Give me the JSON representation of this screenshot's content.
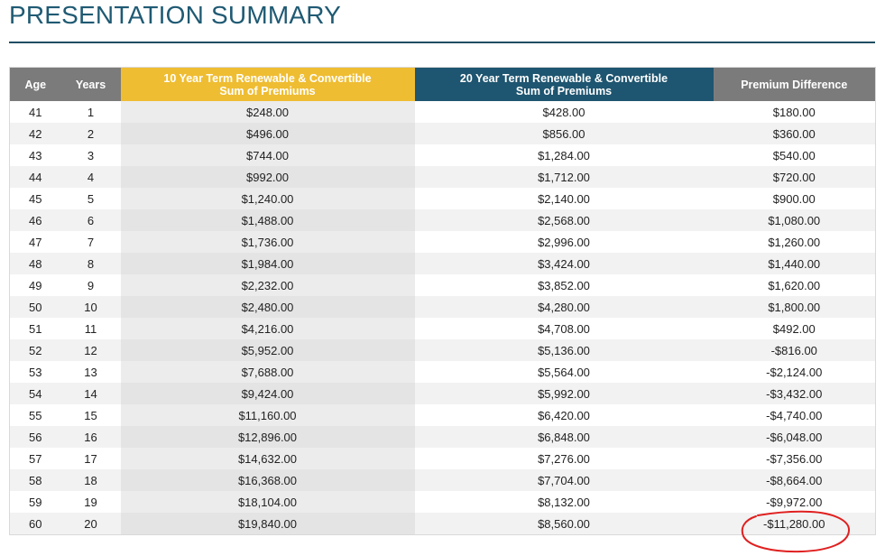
{
  "title": "PRESENTATION SUMMARY",
  "headers": {
    "age": "Age",
    "years": "Years",
    "ten_line1": "10 Year Term Renewable & Convertible",
    "ten_line2": "Sum of Premiums",
    "twenty_line1": "20 Year Term Renewable & Convertible",
    "twenty_line2": "Sum of Premiums",
    "diff": "Premium Difference"
  },
  "colors": {
    "title": "#1f5a73",
    "header_gray": "#7b7b7b",
    "header_gold": "#efbd32",
    "header_navy": "#1e5570",
    "annotation_red": "#e02020"
  },
  "rows": [
    {
      "age": "41",
      "years": "1",
      "ten": "$248.00",
      "twenty": "$428.00",
      "diff": "$180.00"
    },
    {
      "age": "42",
      "years": "2",
      "ten": "$496.00",
      "twenty": "$856.00",
      "diff": "$360.00"
    },
    {
      "age": "43",
      "years": "3",
      "ten": "$744.00",
      "twenty": "$1,284.00",
      "diff": "$540.00"
    },
    {
      "age": "44",
      "years": "4",
      "ten": "$992.00",
      "twenty": "$1,712.00",
      "diff": "$720.00"
    },
    {
      "age": "45",
      "years": "5",
      "ten": "$1,240.00",
      "twenty": "$2,140.00",
      "diff": "$900.00"
    },
    {
      "age": "46",
      "years": "6",
      "ten": "$1,488.00",
      "twenty": "$2,568.00",
      "diff": "$1,080.00"
    },
    {
      "age": "47",
      "years": "7",
      "ten": "$1,736.00",
      "twenty": "$2,996.00",
      "diff": "$1,260.00"
    },
    {
      "age": "48",
      "years": "8",
      "ten": "$1,984.00",
      "twenty": "$3,424.00",
      "diff": "$1,440.00"
    },
    {
      "age": "49",
      "years": "9",
      "ten": "$2,232.00",
      "twenty": "$3,852.00",
      "diff": "$1,620.00"
    },
    {
      "age": "50",
      "years": "10",
      "ten": "$2,480.00",
      "twenty": "$4,280.00",
      "diff": "$1,800.00"
    },
    {
      "age": "51",
      "years": "11",
      "ten": "$4,216.00",
      "twenty": "$4,708.00",
      "diff": "$492.00"
    },
    {
      "age": "52",
      "years": "12",
      "ten": "$5,952.00",
      "twenty": "$5,136.00",
      "diff": "-$816.00"
    },
    {
      "age": "53",
      "years": "13",
      "ten": "$7,688.00",
      "twenty": "$5,564.00",
      "diff": "-$2,124.00"
    },
    {
      "age": "54",
      "years": "14",
      "ten": "$9,424.00",
      "twenty": "$5,992.00",
      "diff": "-$3,432.00"
    },
    {
      "age": "55",
      "years": "15",
      "ten": "$11,160.00",
      "twenty": "$6,420.00",
      "diff": "-$4,740.00"
    },
    {
      "age": "56",
      "years": "16",
      "ten": "$12,896.00",
      "twenty": "$6,848.00",
      "diff": "-$6,048.00"
    },
    {
      "age": "57",
      "years": "17",
      "ten": "$14,632.00",
      "twenty": "$7,276.00",
      "diff": "-$7,356.00"
    },
    {
      "age": "58",
      "years": "18",
      "ten": "$16,368.00",
      "twenty": "$7,704.00",
      "diff": "-$8,664.00"
    },
    {
      "age": "59",
      "years": "19",
      "ten": "$18,104.00",
      "twenty": "$8,132.00",
      "diff": "-$9,972.00"
    },
    {
      "age": "60",
      "years": "20",
      "ten": "$19,840.00",
      "twenty": "$8,560.00",
      "diff": "-$11,280.00"
    }
  ],
  "annotation": {
    "circled_row": 19,
    "icon": "hand-drawn-circle-icon"
  }
}
